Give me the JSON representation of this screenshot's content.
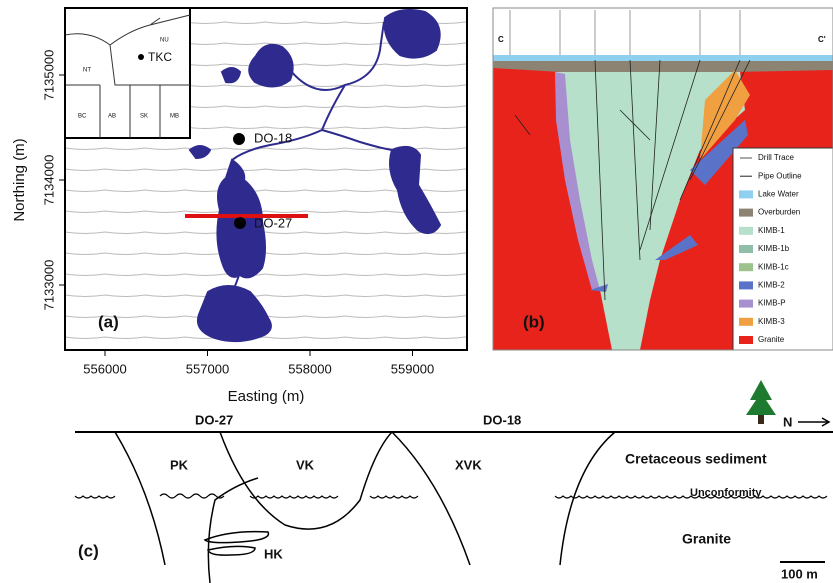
{
  "panel_a": {
    "label": "(a)",
    "x_label": "Easting (m)",
    "y_label": "Northing (m)",
    "x_ticks": [
      556000,
      557000,
      558000,
      559000
    ],
    "y_ticks": [
      7135000,
      7134000,
      7133000
    ],
    "sites": [
      "DO-18",
      "DO-27"
    ],
    "inset": {
      "site": "TKC",
      "regions": [
        "NU",
        "NT",
        "BC",
        "AB",
        "SK",
        "MB"
      ]
    }
  },
  "panel_b": {
    "label": "(b)",
    "section": [
      "C",
      "C'"
    ],
    "legend": [
      "Drill Trace",
      "Pipe Outline",
      "Lake Water",
      "Overburden",
      "KIMB-1",
      "KIMB-1b",
      "KIMB-1c",
      "KIMB-2",
      "KIMB-P",
      "KIMB-3",
      "Granite"
    ]
  },
  "panel_c": {
    "label": "(c)",
    "sites": [
      "DO-27",
      "DO-18"
    ],
    "units": [
      "PK",
      "VK",
      "XVK",
      "HK"
    ],
    "layers": [
      "Cretaceous sediment",
      "Unconformity",
      "Granite"
    ],
    "north": "N",
    "scale": "100 m"
  }
}
